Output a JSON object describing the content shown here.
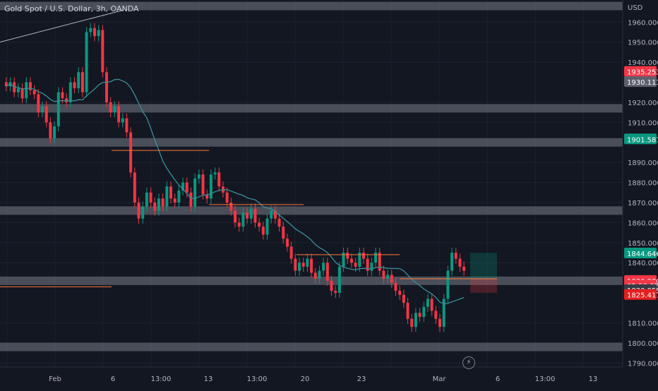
{
  "header": {
    "title": "Gold Spot / U.S. Dollar, 3h, OANDA",
    "currency": "USD"
  },
  "price_axis": {
    "ticks": [
      "1960.000",
      "1950.000",
      "1940.000",
      "1920.000",
      "1910.000",
      "1890.000",
      "1880.000",
      "1870.000",
      "1860.000",
      "1850.000",
      "1840.000",
      "1810.000",
      "1800.000",
      "1790.000"
    ],
    "tick_values": [
      1960,
      1950,
      1940,
      1920,
      1910,
      1890,
      1880,
      1870,
      1860,
      1850,
      1840,
      1810,
      1800,
      1790
    ],
    "badges": [
      {
        "text": "1935.253",
        "value": 1935.253,
        "color": "#f23645"
      },
      {
        "text": "1930.111",
        "value": 1930.111,
        "color": "#5d606b"
      },
      {
        "text": "1901.581",
        "value": 1901.581,
        "color": "#089981"
      },
      {
        "text": "1844.646",
        "value": 1844.646,
        "color": "#089981"
      },
      {
        "text": "1830.980",
        "value": 1830.98,
        "color": "#f23645"
      },
      {
        "text": "02:50:32",
        "value": 1828.6,
        "color": "#f23645"
      },
      {
        "text": "1830.059",
        "value": 1826.4,
        "color": "#363a45"
      },
      {
        "text": "1825.417",
        "value": 1824.0,
        "color": "#e51e1e"
      }
    ]
  },
  "time_axis": {
    "labels": [
      "Feb",
      "6",
      "13:00",
      "13",
      "13:00",
      "20",
      "23",
      "Mar",
      "6",
      "13:00",
      "13"
    ]
  },
  "colors": {
    "bull": "#089981",
    "bear": "#f23645",
    "ma": "#3a8f99",
    "level_zone": "#787b86",
    "level_line": "#ff7a3d",
    "trend_line": "#b2b5be"
  },
  "chart_data": {
    "type": "candlestick",
    "instrument": "Gold Spot / U.S. Dollar",
    "interval": "3h",
    "source": "OANDA",
    "closes": [
      1928,
      1930,
      1925,
      1927,
      1922,
      1930,
      1926,
      1924,
      1915,
      1918,
      1910,
      1902,
      1908,
      1925,
      1922,
      1920,
      1930,
      1927,
      1935,
      1925,
      1955,
      1957,
      1953,
      1956,
      1935,
      1920,
      1915,
      1918,
      1910,
      1912,
      1905,
      1885,
      1870,
      1862,
      1868,
      1875,
      1870,
      1866,
      1872,
      1868,
      1878,
      1872,
      1870,
      1876,
      1880,
      1875,
      1868,
      1882,
      1884,
      1874,
      1872,
      1884,
      1885,
      1878,
      1875,
      1870,
      1866,
      1860,
      1858,
      1865,
      1862,
      1867,
      1860,
      1858,
      1854,
      1862,
      1866,
      1862,
      1858,
      1852,
      1848,
      1842,
      1836,
      1840,
      1838,
      1842,
      1835,
      1832,
      1836,
      1840,
      1831,
      1826,
      1825,
      1838,
      1845,
      1842,
      1840,
      1838,
      1845,
      1842,
      1836,
      1840,
      1845,
      1836,
      1832,
      1834,
      1830,
      1826,
      1824,
      1820,
      1812,
      1808,
      1815,
      1813,
      1818,
      1822,
      1816,
      1812,
      1808,
      1822,
      1836,
      1845,
      1842,
      1838,
      1836
    ],
    "zones": [
      1968,
      1917,
      1900,
      1866,
      1831,
      1798
    ],
    "lines": [
      1896,
      1869,
      1844,
      1832,
      1828
    ],
    "ylim": [
      1788,
      1971
    ]
  }
}
